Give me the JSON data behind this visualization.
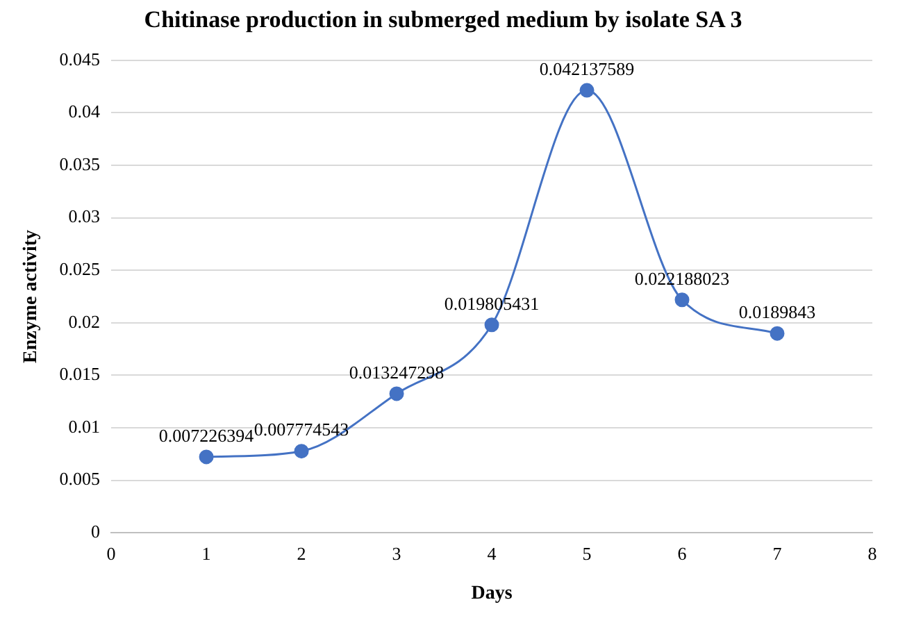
{
  "chart_data": {
    "type": "line",
    "title": "Chitinase production in submerged medium by isolate SA 3",
    "xlabel": "Days",
    "ylabel": "Enzyme activity",
    "x": [
      1,
      2,
      3,
      4,
      5,
      6,
      7
    ],
    "series": [
      {
        "color": "#4472c4",
        "values": [
          0.007226394,
          0.007774543,
          0.013247298,
          0.019805431,
          0.042137589,
          0.022188023,
          0.0189843
        ]
      }
    ],
    "xlim": [
      0,
      8
    ],
    "xticks": [
      0,
      1,
      2,
      3,
      4,
      5,
      6,
      7,
      8
    ],
    "ylim": [
      0,
      0.045
    ],
    "yticks": [
      0,
      0.005,
      0.01,
      0.015,
      0.02,
      0.025,
      0.03,
      0.035,
      0.04,
      0.045
    ],
    "grid": "y",
    "legend": false,
    "marker": "circle",
    "line_style": "solid",
    "data_labels": true
  }
}
